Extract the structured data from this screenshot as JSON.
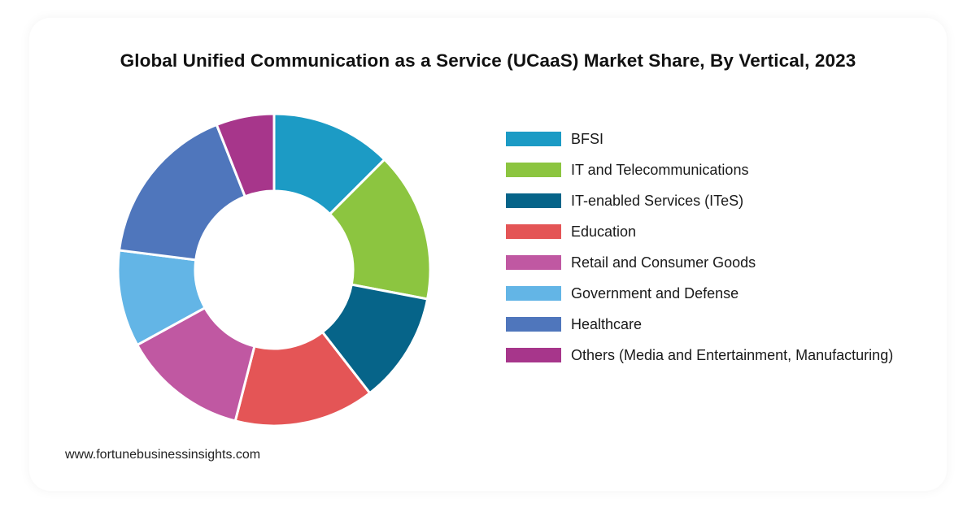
{
  "chart_data": {
    "type": "pie",
    "variant": "donut",
    "title": "Global Unified Communication as a Service (UCaaS) Market Share, By Vertical, 2023",
    "legend_position": "right",
    "slices": [
      {
        "label": "BFSI",
        "value": 12.5,
        "color": "#1c9bc5"
      },
      {
        "label": "IT and Telecommunications",
        "value": 15.5,
        "color": "#8cc540"
      },
      {
        "label": "IT-enabled Services (ITeS)",
        "value": 11.5,
        "color": "#066489"
      },
      {
        "label": "Education",
        "value": 14.5,
        "color": "#e45556"
      },
      {
        "label": "Retail and Consumer Goods",
        "value": 13.0,
        "color": "#c058a2"
      },
      {
        "label": "Government and Defense",
        "value": 10.0,
        "color": "#63b5e6"
      },
      {
        "label": "Healthcare",
        "value": 17.0,
        "color": "#4f76bc"
      },
      {
        "label": "Others (Media and Entertainment, Manufacturing)",
        "value": 6.0,
        "color": "#a7368b"
      }
    ]
  },
  "source": "www.fortunebusinessinsights.com"
}
